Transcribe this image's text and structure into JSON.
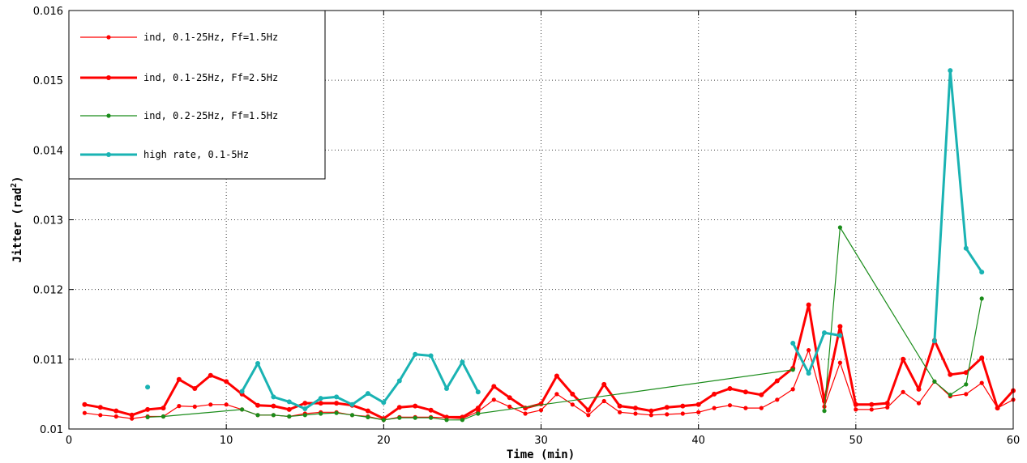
{
  "chart_data": {
    "type": "line",
    "title": "",
    "xlabel": "Time (min)",
    "ylabel_main": "Jitter (rad",
    "ylabel_sup": "2",
    "ylabel_end": ")",
    "xlim": [
      0,
      60
    ],
    "ylim": [
      0.01,
      0.016
    ],
    "x_ticks": [
      0,
      10,
      20,
      30,
      40,
      50,
      60
    ],
    "x_tick_labels": [
      "0",
      "10",
      "20",
      "30",
      "40",
      "50",
      "60"
    ],
    "y_ticks": [
      0.01,
      0.011,
      0.012,
      0.013,
      0.014,
      0.015,
      0.016
    ],
    "y_tick_labels": [
      "0.01",
      "0.011",
      "0.012",
      "0.013",
      "0.014",
      "0.015",
      "0.016"
    ],
    "grid": true,
    "legend_position": "top-left",
    "series": [
      {
        "name": "ind, 0.1-25Hz, Ff=1.5Hz",
        "color": "#ff0000",
        "line_width": 1.2,
        "marker_size": 2.6,
        "points": [
          [
            1,
            0.01023
          ],
          [
            2,
            0.0102
          ],
          [
            3,
            0.01018
          ],
          [
            4,
            0.01015
          ],
          [
            5,
            0.01018
          ],
          [
            6,
            0.01018
          ],
          [
            7,
            0.01033
          ],
          [
            8,
            0.01032
          ],
          [
            9,
            0.01035
          ],
          [
            10,
            0.01035
          ],
          [
            11,
            0.01028
          ],
          [
            12,
            0.0102
          ],
          [
            13,
            0.0102
          ],
          [
            14,
            0.01018
          ],
          [
            15,
            0.01022
          ],
          [
            16,
            0.01024
          ],
          [
            17,
            0.01024
          ],
          [
            18,
            0.0102
          ],
          [
            19,
            0.01018
          ],
          [
            20,
            0.01013
          ],
          [
            21,
            0.01017
          ],
          [
            22,
            0.01017
          ],
          [
            23,
            0.01017
          ],
          [
            24,
            0.01016
          ],
          [
            25,
            0.01015
          ],
          [
            26,
            0.01025
          ],
          [
            27,
            0.01042
          ],
          [
            28,
            0.01032
          ],
          [
            29,
            0.01022
          ],
          [
            30,
            0.01027
          ],
          [
            31,
            0.0105
          ],
          [
            32,
            0.01035
          ],
          [
            33,
            0.0102
          ],
          [
            34,
            0.0104
          ],
          [
            35,
            0.01024
          ],
          [
            36,
            0.01022
          ],
          [
            37,
            0.0102
          ],
          [
            38,
            0.01021
          ],
          [
            39,
            0.01022
          ],
          [
            40,
            0.01024
          ],
          [
            41,
            0.0103
          ],
          [
            42,
            0.01034
          ],
          [
            43,
            0.0103
          ],
          [
            44,
            0.0103
          ],
          [
            45,
            0.01042
          ],
          [
            46,
            0.01057
          ],
          [
            47,
            0.01113
          ],
          [
            48,
            0.01032
          ],
          [
            49,
            0.01095
          ],
          [
            50,
            0.01028
          ],
          [
            51,
            0.01028
          ],
          [
            52,
            0.01031
          ],
          [
            53,
            0.01053
          ],
          [
            54,
            0.01037
          ],
          [
            55,
            0.01068
          ],
          [
            56,
            0.01047
          ],
          [
            57,
            0.0105
          ],
          [
            58,
            0.01066
          ],
          [
            59,
            0.0103
          ],
          [
            60,
            0.01042
          ]
        ]
      },
      {
        "name": "ind, 0.1-25Hz, Ff=2.5Hz",
        "color": "#ff0000",
        "line_width": 3,
        "marker_size": 3,
        "points": [
          [
            1,
            0.01035
          ],
          [
            2,
            0.01031
          ],
          [
            3,
            0.01026
          ],
          [
            4,
            0.0102
          ],
          [
            5,
            0.01028
          ],
          [
            6,
            0.0103
          ],
          [
            7,
            0.01071
          ],
          [
            8,
            0.01058
          ],
          [
            9,
            0.01077
          ],
          [
            10,
            0.01068
          ],
          [
            11,
            0.0105
          ],
          [
            12,
            0.01034
          ],
          [
            13,
            0.01033
          ],
          [
            14,
            0.01028
          ],
          [
            15,
            0.01037
          ],
          [
            16,
            0.01037
          ],
          [
            17,
            0.01037
          ],
          [
            18,
            0.01034
          ],
          [
            19,
            0.01026
          ],
          [
            20,
            0.01015
          ],
          [
            21,
            0.01031
          ],
          [
            22,
            0.01033
          ],
          [
            23,
            0.01027
          ],
          [
            24,
            0.01017
          ],
          [
            25,
            0.01017
          ],
          [
            26,
            0.0103
          ],
          [
            27,
            0.01061
          ],
          [
            28,
            0.01045
          ],
          [
            29,
            0.0103
          ],
          [
            30,
            0.01036
          ],
          [
            31,
            0.01076
          ],
          [
            32,
            0.0105
          ],
          [
            33,
            0.01027
          ],
          [
            34,
            0.01064
          ],
          [
            35,
            0.01033
          ],
          [
            36,
            0.0103
          ],
          [
            37,
            0.01026
          ],
          [
            38,
            0.01031
          ],
          [
            39,
            0.01033
          ],
          [
            40,
            0.01035
          ],
          [
            41,
            0.0105
          ],
          [
            42,
            0.01058
          ],
          [
            43,
            0.01053
          ],
          [
            44,
            0.01049
          ],
          [
            45,
            0.01069
          ],
          [
            46,
            0.01087
          ],
          [
            47,
            0.01178
          ],
          [
            48,
            0.0104
          ],
          [
            49,
            0.01147
          ],
          [
            50,
            0.01035
          ],
          [
            51,
            0.01035
          ],
          [
            52,
            0.01037
          ],
          [
            53,
            0.011
          ],
          [
            54,
            0.01057
          ],
          [
            55,
            0.01127
          ],
          [
            56,
            0.01078
          ],
          [
            57,
            0.01081
          ],
          [
            58,
            0.01102
          ],
          [
            59,
            0.0103
          ],
          [
            60,
            0.01055
          ]
        ]
      },
      {
        "name": "ind, 0.2-25Hz, Ff=1.5Hz",
        "color": "#1a8c1a",
        "line_width": 1.2,
        "marker_size": 2.6,
        "points": [
          [
            5,
            0.01017
          ],
          [
            6,
            0.01018
          ],
          [
            11,
            0.01028
          ],
          [
            12,
            0.0102
          ],
          [
            13,
            0.0102
          ],
          [
            14,
            0.01018
          ],
          [
            15,
            0.0102
          ],
          [
            16,
            0.01022
          ],
          [
            17,
            0.01023
          ],
          [
            18,
            0.0102
          ],
          [
            19,
            0.01017
          ],
          [
            20,
            0.01013
          ],
          [
            21,
            0.01016
          ],
          [
            22,
            0.01016
          ],
          [
            23,
            0.01016
          ],
          [
            24,
            0.01013
          ],
          [
            25,
            0.01013
          ],
          [
            26,
            0.01022
          ],
          [
            46,
            0.01085
          ],
          [
            47,
            null
          ],
          [
            48,
            0.01026
          ],
          [
            49,
            0.01289
          ],
          [
            55,
            0.01068
          ],
          [
            56,
            0.01049
          ],
          [
            57,
            0.01064
          ],
          [
            58,
            0.01187
          ]
        ]
      },
      {
        "name": "high rate, 0.1-5Hz",
        "color": "#1ab3b3",
        "line_width": 3,
        "marker_size": 3,
        "points": [
          [
            5,
            0.0106
          ],
          [
            6,
            null
          ],
          [
            11,
            0.01054
          ],
          [
            12,
            0.01094
          ],
          [
            13,
            0.01046
          ],
          [
            14,
            0.01039
          ],
          [
            15,
            0.01029
          ],
          [
            16,
            0.01044
          ],
          [
            17,
            0.01046
          ],
          [
            18,
            0.01035
          ],
          [
            19,
            0.01051
          ],
          [
            20,
            0.01038
          ],
          [
            21,
            0.01069
          ],
          [
            22,
            0.01107
          ],
          [
            23,
            0.01105
          ],
          [
            24,
            0.01058
          ],
          [
            25,
            0.01096
          ],
          [
            26,
            0.01053
          ],
          [
            27,
            null
          ],
          [
            46,
            0.01123
          ],
          [
            47,
            0.0108
          ],
          [
            48,
            0.01138
          ],
          [
            49,
            0.01134
          ],
          [
            50,
            null
          ],
          [
            55,
            0.01126
          ],
          [
            56,
            0.01514
          ],
          [
            57,
            0.01259
          ],
          [
            58,
            0.01225
          ]
        ]
      }
    ]
  }
}
